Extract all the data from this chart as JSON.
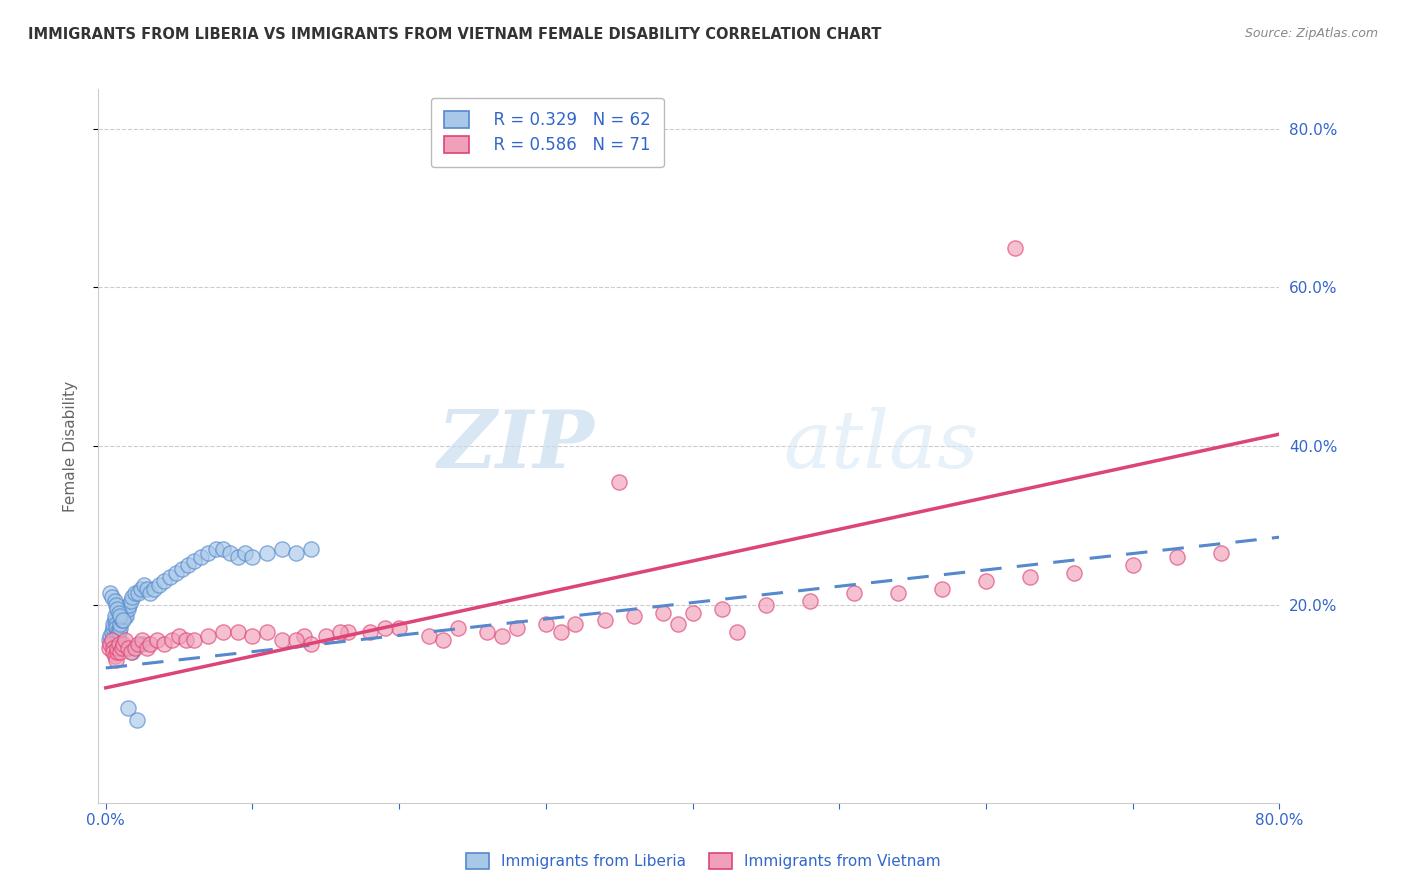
{
  "title": "IMMIGRANTS FROM LIBERIA VS IMMIGRANTS FROM VIETNAM FEMALE DISABILITY CORRELATION CHART",
  "source": "Source: ZipAtlas.com",
  "ylabel": "Female Disability",
  "xlim": [
    -0.005,
    0.8
  ],
  "ylim": [
    -0.05,
    0.85
  ],
  "xtick_vals": [
    0.0,
    0.1,
    0.2,
    0.3,
    0.4,
    0.5,
    0.6,
    0.7,
    0.8
  ],
  "xtick_show": [
    0.0,
    0.8
  ],
  "ytick_vals": [
    0.2,
    0.4,
    0.6,
    0.8
  ],
  "legend_R1": "R = 0.329",
  "legend_N1": "N = 62",
  "legend_R2": "R = 0.586",
  "legend_N2": "N = 71",
  "color_liberia": "#A8C8E8",
  "color_vietnam": "#F0A0B8",
  "trendline_liberia_color": "#5588CC",
  "trendline_vietnam_color": "#DD4477",
  "watermark_zip": "ZIP",
  "watermark_atlas": "atlas",
  "liberia_x": [
    0.002,
    0.003,
    0.004,
    0.005,
    0.005,
    0.006,
    0.006,
    0.007,
    0.007,
    0.008,
    0.008,
    0.009,
    0.009,
    0.01,
    0.01,
    0.011,
    0.011,
    0.012,
    0.013,
    0.014,
    0.015,
    0.016,
    0.017,
    0.018,
    0.02,
    0.022,
    0.024,
    0.026,
    0.028,
    0.03,
    0.033,
    0.036,
    0.04,
    0.044,
    0.048,
    0.052,
    0.056,
    0.06,
    0.065,
    0.07,
    0.075,
    0.08,
    0.085,
    0.09,
    0.095,
    0.1,
    0.11,
    0.12,
    0.13,
    0.14,
    0.003,
    0.004,
    0.006,
    0.007,
    0.008,
    0.009,
    0.01,
    0.012,
    0.015,
    0.018,
    0.021,
    0.025
  ],
  "liberia_y": [
    0.155,
    0.16,
    0.165,
    0.17,
    0.175,
    0.18,
    0.185,
    0.175,
    0.17,
    0.165,
    0.16,
    0.155,
    0.165,
    0.17,
    0.175,
    0.18,
    0.185,
    0.19,
    0.185,
    0.185,
    0.195,
    0.2,
    0.205,
    0.21,
    0.215,
    0.215,
    0.22,
    0.225,
    0.22,
    0.215,
    0.22,
    0.225,
    0.23,
    0.235,
    0.24,
    0.245,
    0.25,
    0.255,
    0.26,
    0.265,
    0.27,
    0.27,
    0.265,
    0.26,
    0.265,
    0.26,
    0.265,
    0.27,
    0.265,
    0.27,
    0.215,
    0.21,
    0.205,
    0.2,
    0.195,
    0.19,
    0.185,
    0.18,
    0.07,
    0.14,
    0.055,
    0.15
  ],
  "vietnam_x": [
    0.002,
    0.003,
    0.004,
    0.005,
    0.005,
    0.006,
    0.007,
    0.008,
    0.008,
    0.009,
    0.01,
    0.011,
    0.012,
    0.013,
    0.015,
    0.017,
    0.02,
    0.022,
    0.025,
    0.028,
    0.03,
    0.035,
    0.04,
    0.045,
    0.05,
    0.055,
    0.06,
    0.07,
    0.08,
    0.09,
    0.1,
    0.11,
    0.12,
    0.135,
    0.15,
    0.165,
    0.18,
    0.2,
    0.22,
    0.24,
    0.26,
    0.28,
    0.3,
    0.32,
    0.34,
    0.36,
    0.38,
    0.4,
    0.42,
    0.45,
    0.48,
    0.51,
    0.54,
    0.57,
    0.6,
    0.63,
    0.66,
    0.7,
    0.73,
    0.76,
    0.13,
    0.14,
    0.16,
    0.19,
    0.23,
    0.27,
    0.31,
    0.35,
    0.39,
    0.43,
    0.62
  ],
  "vietnam_y": [
    0.145,
    0.15,
    0.155,
    0.145,
    0.14,
    0.135,
    0.13,
    0.14,
    0.145,
    0.15,
    0.14,
    0.145,
    0.15,
    0.155,
    0.145,
    0.14,
    0.145,
    0.15,
    0.155,
    0.145,
    0.15,
    0.155,
    0.15,
    0.155,
    0.16,
    0.155,
    0.155,
    0.16,
    0.165,
    0.165,
    0.16,
    0.165,
    0.155,
    0.16,
    0.16,
    0.165,
    0.165,
    0.17,
    0.16,
    0.17,
    0.165,
    0.17,
    0.175,
    0.175,
    0.18,
    0.185,
    0.19,
    0.19,
    0.195,
    0.2,
    0.205,
    0.215,
    0.215,
    0.22,
    0.23,
    0.235,
    0.24,
    0.25,
    0.26,
    0.265,
    0.155,
    0.15,
    0.165,
    0.17,
    0.155,
    0.16,
    0.165,
    0.355,
    0.175,
    0.165,
    0.65
  ],
  "trendline_lib_x0": 0.0,
  "trendline_lib_x1": 0.8,
  "trendline_lib_y0": 0.12,
  "trendline_lib_y1": 0.285,
  "trendline_vie_x0": 0.0,
  "trendline_vie_x1": 0.8,
  "trendline_vie_y0": 0.095,
  "trendline_vie_y1": 0.415
}
